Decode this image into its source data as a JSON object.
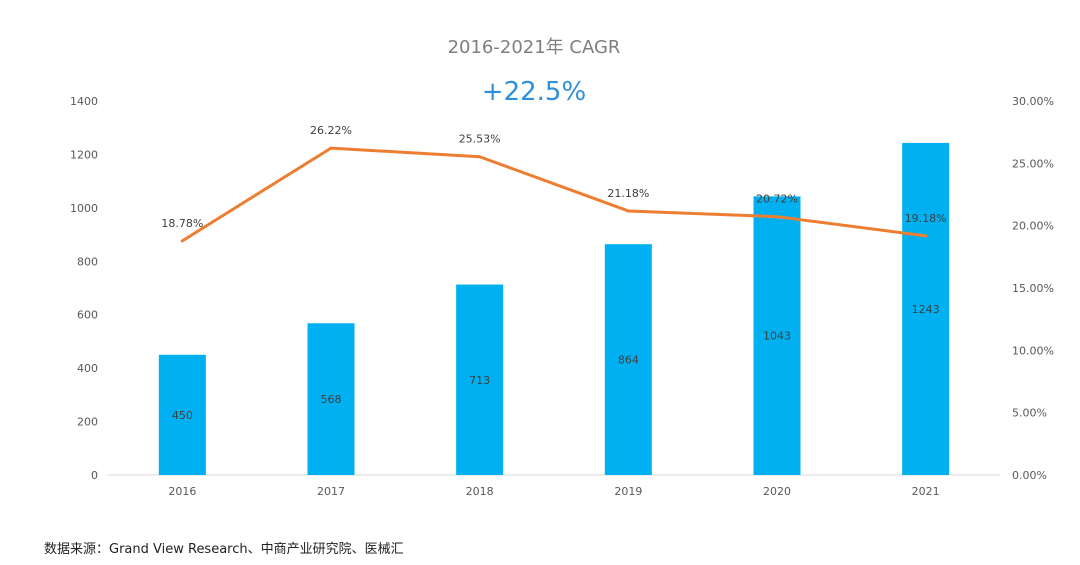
{
  "header": {
    "title": "2016-2021年 CAGR",
    "cagr_value": "+22.5%"
  },
  "source_text": "数据来源：Grand View Research、中商产业研究院、医械汇",
  "colors": {
    "bar": "#00b0f0",
    "line": "#ed7d31",
    "axis": "#d9d9d9",
    "cagr": "#2f8fdd"
  },
  "chart_data": {
    "type": "bar",
    "categories": [
      "2016",
      "2017",
      "2018",
      "2019",
      "2020",
      "2021"
    ],
    "series": [
      {
        "type": "bar",
        "axis": "left",
        "values": [
          450,
          568,
          713,
          864,
          1043,
          1243
        ],
        "labels": [
          "450",
          "568",
          "713",
          "864",
          "1043",
          "1243"
        ]
      },
      {
        "type": "line",
        "axis": "right",
        "values": [
          18.78,
          26.22,
          25.53,
          21.18,
          20.72,
          19.18
        ],
        "labels": [
          "18.78%",
          "26.22%",
          "25.53%",
          "21.18%",
          "20.72%",
          "19.18%"
        ]
      }
    ],
    "ylim": [
      0,
      1400
    ],
    "y_ticks": [
      "0",
      "200",
      "400",
      "600",
      "800",
      "1000",
      "1200",
      "1400"
    ],
    "y2lim": [
      0,
      30
    ],
    "y2_ticks": [
      "0.00%",
      "5.00%",
      "10.00%",
      "15.00%",
      "20.00%",
      "25.00%",
      "30.00%"
    ],
    "grid": false
  }
}
